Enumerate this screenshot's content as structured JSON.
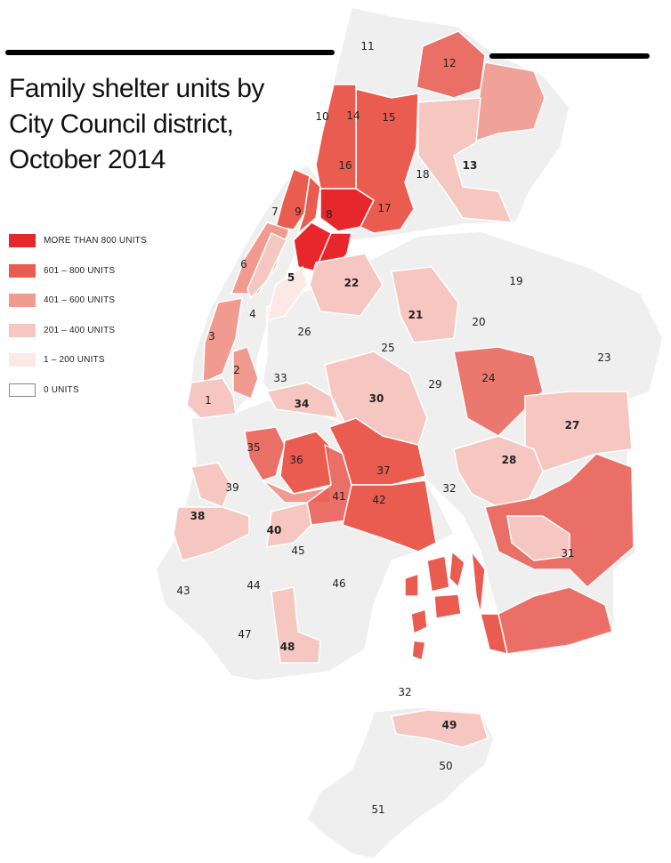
{
  "title": "Family shelter units by City Council district, October 2014",
  "legend": [
    {
      "label": "MORE THAN 800 UNITS",
      "color": "#e8272d"
    },
    {
      "label": "601 – 800 UNITS",
      "color": "#ea5b50"
    },
    {
      "label": "401 – 600 UNITS",
      "color": "#f19a8f"
    },
    {
      "label": "201 – 400 UNITS",
      "color": "#f6c7c1"
    },
    {
      "label": "1 – 200 UNITS",
      "color": "#fce8e5"
    },
    {
      "label": "0 UNITS",
      "color": "#ffffff"
    }
  ],
  "land_color": "#efefef",
  "district_labels": [
    {
      "text": "11",
      "bold": false
    },
    {
      "text": "12",
      "bold": false
    },
    {
      "text": "10",
      "bold": false
    },
    {
      "text": "14",
      "bold": false
    },
    {
      "text": "15",
      "bold": false
    },
    {
      "text": "16",
      "bold": false
    },
    {
      "text": "13",
      "bold": true
    },
    {
      "text": "18",
      "bold": false
    },
    {
      "text": "7",
      "bold": false
    },
    {
      "text": "9",
      "bold": false
    },
    {
      "text": "8",
      "bold": false
    },
    {
      "text": "17",
      "bold": false
    },
    {
      "text": "6",
      "bold": false
    },
    {
      "text": "5",
      "bold": true
    },
    {
      "text": "22",
      "bold": true
    },
    {
      "text": "19",
      "bold": false
    },
    {
      "text": "4",
      "bold": false
    },
    {
      "text": "21",
      "bold": true
    },
    {
      "text": "20",
      "bold": false
    },
    {
      "text": "26",
      "bold": false
    },
    {
      "text": "3",
      "bold": false
    },
    {
      "text": "25",
      "bold": false
    },
    {
      "text": "23",
      "bold": false
    },
    {
      "text": "2",
      "bold": false
    },
    {
      "text": "33",
      "bold": false
    },
    {
      "text": "24",
      "bold": false
    },
    {
      "text": "29",
      "bold": false
    },
    {
      "text": "30",
      "bold": true
    },
    {
      "text": "1",
      "bold": false
    },
    {
      "text": "34",
      "bold": true
    },
    {
      "text": "27",
      "bold": true
    },
    {
      "text": "28",
      "bold": true
    },
    {
      "text": "35",
      "bold": false
    },
    {
      "text": "36",
      "bold": false
    },
    {
      "text": "37",
      "bold": false
    },
    {
      "text": "32",
      "bold": false
    },
    {
      "text": "39",
      "bold": false
    },
    {
      "text": "41",
      "bold": false
    },
    {
      "text": "42",
      "bold": false
    },
    {
      "text": "38",
      "bold": true
    },
    {
      "text": "40",
      "bold": true
    },
    {
      "text": "45",
      "bold": false
    },
    {
      "text": "31",
      "bold": false
    },
    {
      "text": "43",
      "bold": false
    },
    {
      "text": "44",
      "bold": false
    },
    {
      "text": "46",
      "bold": false
    },
    {
      "text": "47",
      "bold": false
    },
    {
      "text": "48",
      "bold": true
    },
    {
      "text": "32",
      "bold": false
    },
    {
      "text": "49",
      "bold": true
    },
    {
      "text": "50",
      "bold": false
    },
    {
      "text": "51",
      "bold": false
    }
  ]
}
